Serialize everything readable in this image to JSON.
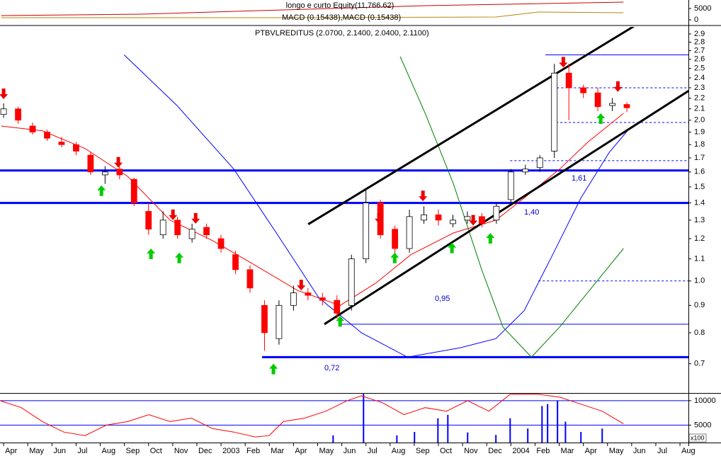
{
  "chart_data": [
    {
      "type": "line",
      "title": "longo e curto Equity(11,766.62)",
      "subtitle": "MACD (0.15438),MACD (0.15438)",
      "xlim": [
        -0.15,
        28.35
      ],
      "ylim": [
        -2190,
        8750
      ],
      "yticks": [
        0,
        5000
      ],
      "series": [
        {
          "color": "#cc0000",
          "x": [
            -0.1,
            5.72,
            11.58,
            17.45,
            25.66
          ],
          "values": [
            1875,
            2500,
            4375,
            6250,
            7800
          ]
        },
        {
          "color": "#b8860b",
          "x": [
            -0.1,
            11.58,
            20.38,
            22.14,
            25.66
          ],
          "values": [
            938,
            938,
            1250,
            3440,
            3125
          ]
        }
      ]
    },
    {
      "type": "candlestick",
      "title": "PTBVLREDITUS (2.0700, 2.1400, 2.0400, 2.1100)",
      "log_scale": true,
      "xlim": [
        -0.15,
        28.35
      ],
      "ylim": [
        0.617,
        2.99
      ],
      "yticks": [
        0.7,
        0.8,
        0.9,
        {
          "value": 1,
          "label": "1.0"
        },
        1.1,
        1.2,
        1.3,
        1.4,
        1.5,
        1.6,
        1.7,
        1.8,
        1.9,
        {
          "value": 2,
          "label": "2.0"
        },
        2.1,
        2.2,
        2.3,
        2.4,
        2.5,
        2.6,
        2.7,
        2.8,
        2.9
      ],
      "xticks": [
        {
          "value": 0,
          "label": "Apr"
        },
        {
          "value": 1,
          "label": "May"
        },
        {
          "value": 2,
          "label": "Jun"
        },
        {
          "value": 3,
          "label": "Jul"
        },
        {
          "value": 4,
          "label": "Aug"
        },
        {
          "value": 5,
          "label": "Sep"
        },
        {
          "value": 6,
          "label": "Oct"
        },
        {
          "value": 7,
          "label": "Nov"
        },
        {
          "value": 8,
          "label": "Dec"
        },
        {
          "value": 9,
          "label": "2003"
        },
        {
          "value": 10,
          "label": "Feb"
        },
        {
          "value": 11,
          "label": "Mar"
        },
        {
          "value": 12,
          "label": "Apr"
        },
        {
          "value": 13,
          "label": "May"
        },
        {
          "value": 14,
          "label": "Jun"
        },
        {
          "value": 15,
          "label": "Jul"
        },
        {
          "value": 16,
          "label": "Aug"
        },
        {
          "value": 17,
          "label": "Sep"
        },
        {
          "value": 18,
          "label": "Oct"
        },
        {
          "value": 19,
          "label": "Nov"
        },
        {
          "value": 20,
          "label": "Dec"
        },
        {
          "value": 21,
          "label": "2004"
        },
        {
          "value": 22,
          "label": "Feb"
        },
        {
          "value": 23,
          "label": "Mar"
        },
        {
          "value": 24,
          "label": "Apr"
        },
        {
          "value": 25,
          "label": "May"
        },
        {
          "value": 26,
          "label": "Jun"
        },
        {
          "value": 27,
          "label": "Jul"
        },
        {
          "value": 28,
          "label": "Aug"
        }
      ],
      "x": [
        0,
        0.6,
        1.2,
        1.8,
        2.4,
        3,
        3.6,
        4.2,
        4.8,
        5.4,
        6,
        6.6,
        7.2,
        7.8,
        8.4,
        9,
        9.6,
        10.2,
        10.8,
        11.4,
        12,
        12.6,
        13.2,
        13.8,
        14.4,
        15,
        15.6,
        16.2,
        16.8,
        17.4,
        18,
        18.6,
        19.2,
        19.8,
        20.4,
        21,
        21.6,
        22.2,
        22.8,
        23.4,
        24,
        24.6,
        25.2,
        25.8
      ],
      "open": [
        2.05,
        2.1,
        1.95,
        1.9,
        1.82,
        1.8,
        1.72,
        1.58,
        1.62,
        1.55,
        1.35,
        1.22,
        1.3,
        1.2,
        1.26,
        1.2,
        1.12,
        1.05,
        0.9,
        0.78,
        0.9,
        0.95,
        0.93,
        0.92,
        0.9,
        1.1,
        1.4,
        1.25,
        1.15,
        1.3,
        1.33,
        1.28,
        1.3,
        1.32,
        1.3,
        1.42,
        1.6,
        1.63,
        1.75,
        2.45,
        2.3,
        2.25,
        2.13,
        2.14
      ],
      "high": [
        2.15,
        2.12,
        1.98,
        1.92,
        1.86,
        1.82,
        1.74,
        1.64,
        1.64,
        1.56,
        1.4,
        1.35,
        1.32,
        1.28,
        1.28,
        1.22,
        1.14,
        1.07,
        0.92,
        0.92,
        0.98,
        0.97,
        0.95,
        0.94,
        1.12,
        1.48,
        1.42,
        1.27,
        1.36,
        1.38,
        1.36,
        1.33,
        1.35,
        1.34,
        1.4,
        1.62,
        1.65,
        1.72,
        2.55,
        2.55,
        2.33,
        2.3,
        2.2,
        2.16
      ],
      "low": [
        2.02,
        1.97,
        1.88,
        1.83,
        1.78,
        1.72,
        1.58,
        1.52,
        1.55,
        1.38,
        1.22,
        1.2,
        1.2,
        1.18,
        1.2,
        1.13,
        1.03,
        0.95,
        0.74,
        0.76,
        0.88,
        0.92,
        0.9,
        0.85,
        0.88,
        1.08,
        1.2,
        1.12,
        1.13,
        1.28,
        1.27,
        1.26,
        1.28,
        1.26,
        1.28,
        1.4,
        1.58,
        1.6,
        1.7,
        2.0,
        2.2,
        2.08,
        2.08,
        2.07
      ],
      "close": [
        2.1,
        2.0,
        1.9,
        1.85,
        1.8,
        1.75,
        1.6,
        1.6,
        1.58,
        1.4,
        1.25,
        1.3,
        1.22,
        1.25,
        1.22,
        1.15,
        1.05,
        0.97,
        0.8,
        0.9,
        0.95,
        0.94,
        0.92,
        0.87,
        1.1,
        1.4,
        1.22,
        1.15,
        1.32,
        1.33,
        1.3,
        1.3,
        1.32,
        1.28,
        1.38,
        1.6,
        1.62,
        1.7,
        2.45,
        2.3,
        2.25,
        2.12,
        2.15,
        2.11
      ],
      "up_color": "#ffffff",
      "down_color": "#ff0000",
      "series": [
        {
          "color": "#ff0000",
          "x": [
            -0.1,
            1.61,
            3.37,
            5.13,
            6.89,
            8.65,
            10.41,
            12.17,
            13.93,
            15.4,
            16.86,
            18.62,
            20.38,
            21.55,
            23.02,
            24.19,
            25.66
          ],
          "values": [
            1.95,
            1.91,
            1.77,
            1.57,
            1.3,
            1.19,
            1.07,
            0.96,
            0.9,
            0.99,
            1.12,
            1.23,
            1.3,
            1.43,
            1.62,
            1.82,
            2.06
          ]
        },
        {
          "color": "#0000ff",
          "x": [
            4.99,
            7.18,
            9.53,
            11.29,
            13.05,
            14.81,
            16.72,
            18.91,
            20.38,
            21.55,
            22.73,
            23.9,
            25.07,
            25.95
          ],
          "values": [
            2.65,
            2.13,
            1.62,
            1.23,
            0.93,
            0.8,
            0.72,
            0.75,
            0.78,
            0.88,
            1.12,
            1.43,
            1.74,
            1.94
          ]
        },
        {
          "color": "#008000",
          "x": [
            16.42,
            17.45,
            18.62,
            19.79,
            20.67,
            21.85,
            23.02,
            24.49,
            25.66
          ],
          "values": [
            2.63,
            2.06,
            1.52,
            1.05,
            0.82,
            0.72,
            0.82,
            0.99,
            1.15
          ]
        },
        {
          "color": "#000000",
          "x": [
            12.61,
            26.1
          ],
          "values": [
            1.277,
            3.0
          ]
        },
        {
          "color": "#000000",
          "x": [
            13.28,
            28.36
          ],
          "values": [
            0.83,
            2.27
          ]
        }
      ],
      "levels": [
        {
          "value": 1.61,
          "x": [
            -0.15,
            28.35
          ],
          "color": "#0000ff",
          "style": "bold"
        },
        {
          "value": 1.4,
          "x": [
            -0.15,
            28.35
          ],
          "color": "#0000ff",
          "style": "bold"
        },
        {
          "value": 0.72,
          "x": [
            10.7,
            28.35
          ],
          "color": "#0000ff",
          "style": "bold"
        },
        {
          "value": 0.83,
          "x": [
            13.93,
            28.35
          ],
          "color": "#0000ff",
          "style": "thin"
        },
        {
          "value": 2.65,
          "x": [
            22.43,
            28.35
          ],
          "color": "#0000ff",
          "style": "thin"
        },
        {
          "value": 1.0,
          "x": [
            22.14,
            28.35
          ],
          "color": "#0000ff",
          "style": "dashed"
        },
        {
          "value": 2.3,
          "x": [
            22.73,
            28.35
          ],
          "color": "#0000ff",
          "style": "dashed"
        },
        {
          "value": 1.98,
          "x": [
            22.87,
            28.35
          ],
          "color": "#0000ff",
          "style": "dashed"
        },
        {
          "value": 1.68,
          "x": [
            20.97,
            28.35
          ],
          "color": "#0000ff",
          "style": "dashed"
        }
      ],
      "annotations": [
        "1,61",
        "1,40",
        "0,95",
        "0,72"
      ],
      "buy_signals": {
        "color": "#00cc00",
        "x": [
          4.05,
          6.1,
          7.27,
          11.17,
          13.93,
          16.19,
          18.56,
          20.15,
          24.72
        ],
        "values": [
          1.51,
          1.15,
          1.13,
          0.7,
          0.86,
          1.13,
          1.18,
          1.23,
          2.06
        ]
      },
      "sell_signals": {
        "color": "#ee0000",
        "x": [
          0,
          4.75,
          7.01,
          7.95,
          12.32,
          15.54,
          17.36,
          19.44,
          23.17,
          25.43
        ],
        "values": [
          2.19,
          1.63,
          1.3,
          1.28,
          0.96,
          1.28,
          1.41,
          1.27,
          2.51,
          2.26
        ]
      }
    },
    {
      "type": "bar",
      "unit_label": "x100",
      "xlim": [
        -0.15,
        28.35
      ],
      "ylim": [
        1430,
        11430
      ],
      "yticks": [
        5000,
        10000
      ],
      "color": "#0000ff",
      "x": [
        13.64,
        14.9,
        16.28,
        17.01,
        17.98,
        18.39,
        19.21,
        20.38,
        20.97,
        21.7,
        22.29,
        22.52,
        22.93,
        23.26,
        23.9,
        24.78
      ],
      "values": [
        2900,
        11400,
        2900,
        3600,
        6400,
        7100,
        3500,
        3000,
        6400,
        4300,
        8900,
        9300,
        10000,
        5700,
        3600,
        4300
      ],
      "series": [
        {
          "color": "#ff0000",
          "x": [
            -0.15,
            0.73,
            1.61,
            2.49,
            3.37,
            4.25,
            5.13,
            6.01,
            6.89,
            7.77,
            8.65,
            9.53,
            10.41,
            10.99,
            11.58,
            12.46,
            13.34,
            14.22,
            14.81,
            15.69,
            16.57,
            17.45,
            18.33,
            19.21,
            20.09,
            20.97,
            22.14,
            23.02,
            23.9,
            24.78,
            25.66
          ],
          "values": [
            10000,
            8571,
            5714,
            3571,
            2857,
            5000,
            5714,
            7143,
            5714,
            6429,
            4286,
            3571,
            2571,
            2857,
            5714,
            6429,
            7857,
            10000,
            11000,
            9571,
            7143,
            8571,
            7857,
            10000,
            7857,
            11300,
            11300,
            10714,
            9286,
            7857,
            5286
          ]
        }
      ]
    }
  ]
}
